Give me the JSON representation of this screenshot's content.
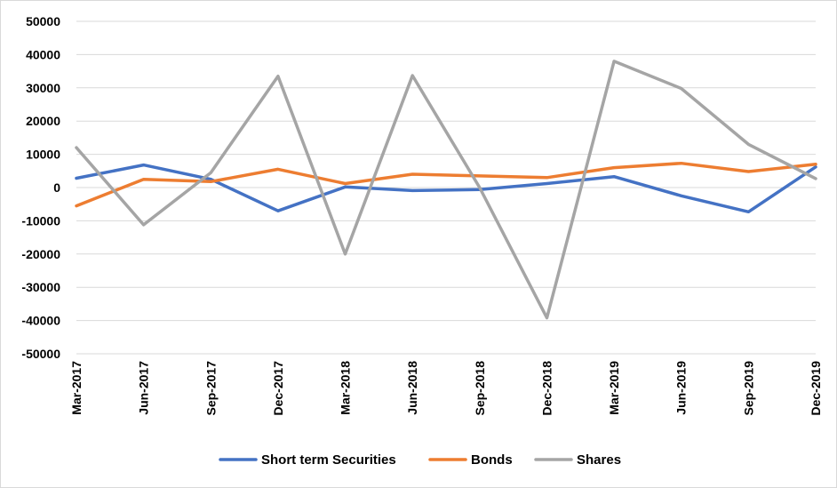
{
  "chart_data": {
    "type": "line",
    "categories": [
      "Mar-2017",
      "Jun-2017",
      "Sep-2017",
      "Dec-2017",
      "Mar-2018",
      "Jun-2018",
      "Sep-2018",
      "Dec-2018",
      "Mar-2019",
      "Jun-2019",
      "Sep-2019",
      "Dec-2019"
    ],
    "ylim": [
      -50000,
      50000
    ],
    "yticks": [
      50000,
      40000,
      30000,
      20000,
      10000,
      0,
      -10000,
      -20000,
      -30000,
      -40000,
      -50000
    ],
    "grid": true,
    "legend_position": "bottom",
    "series": [
      {
        "name": "Short term Securities",
        "color": "#4472c4",
        "values": [
          2800,
          6800,
          2500,
          -7000,
          200,
          -900,
          -600,
          1200,
          3300,
          -2500,
          -7300,
          6200
        ]
      },
      {
        "name": "Bonds",
        "color": "#ed7d31",
        "values": [
          -5500,
          2500,
          1800,
          5500,
          1200,
          4000,
          3500,
          3000,
          6000,
          7300,
          4800,
          7000
        ]
      },
      {
        "name": "Shares",
        "color": "#a5a5a5",
        "values": [
          12000,
          -11200,
          4500,
          33500,
          -20000,
          33700,
          0,
          -39200,
          38000,
          29800,
          13000,
          2700
        ]
      }
    ]
  }
}
